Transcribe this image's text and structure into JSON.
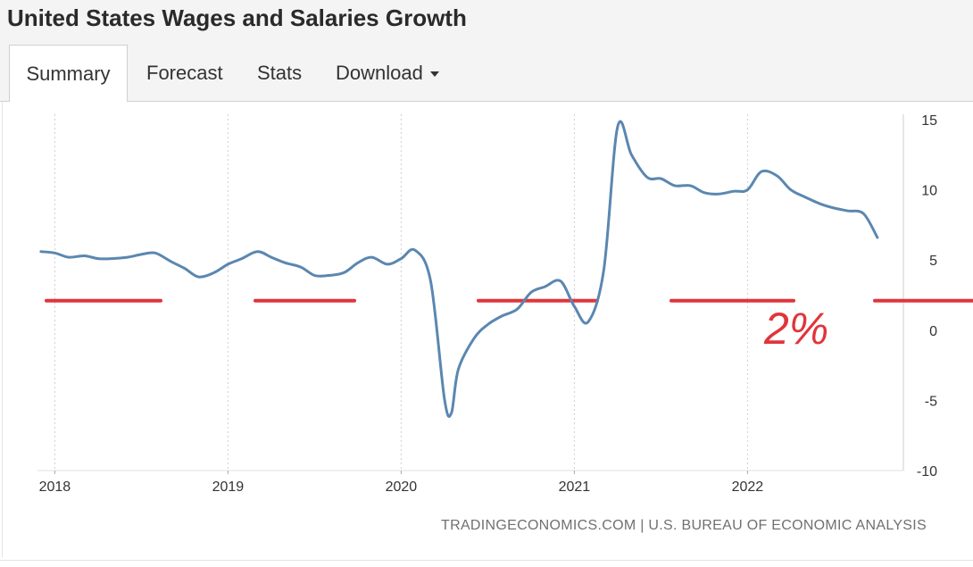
{
  "page": {
    "title": "United States Wages and Salaries Growth"
  },
  "tabs": [
    {
      "label": "Summary",
      "active": true
    },
    {
      "label": "Forecast",
      "active": false
    },
    {
      "label": "Stats",
      "active": false
    },
    {
      "label": "Download",
      "active": false,
      "has_dropdown": true
    }
  ],
  "source": "TRADINGECONOMICS.COM | U.S. BUREAU OF ECONOMIC ANALYSIS",
  "colors": {
    "line": "#5a87b0",
    "annotation": "#e0353b",
    "grid": "#d0d0d0"
  },
  "chart_data": {
    "type": "line",
    "title": "",
    "xlabel": "",
    "ylabel": "",
    "x_ticks": [
      "2018",
      "2019",
      "2020",
      "2021",
      "2022"
    ],
    "y_ticks": [
      15,
      10,
      5,
      0,
      -5,
      -10
    ],
    "ylim": [
      -10,
      15
    ],
    "xlim": [
      2017.9,
      2022.9
    ],
    "grid": "vertical dotted",
    "y_axis_position": "right",
    "series": [
      {
        "points": [
          [
            2017.92,
            5.6
          ],
          [
            2018.0,
            5.5
          ],
          [
            2018.08,
            5.2
          ],
          [
            2018.17,
            5.3
          ],
          [
            2018.25,
            5.1
          ],
          [
            2018.33,
            5.1
          ],
          [
            2018.42,
            5.2
          ],
          [
            2018.5,
            5.4
          ],
          [
            2018.58,
            5.5
          ],
          [
            2018.67,
            4.9
          ],
          [
            2018.75,
            4.4
          ],
          [
            2018.83,
            3.8
          ],
          [
            2018.92,
            4.1
          ],
          [
            2019.0,
            4.7
          ],
          [
            2019.08,
            5.1
          ],
          [
            2019.17,
            5.6
          ],
          [
            2019.25,
            5.2
          ],
          [
            2019.33,
            4.8
          ],
          [
            2019.42,
            4.5
          ],
          [
            2019.5,
            3.9
          ],
          [
            2019.58,
            3.9
          ],
          [
            2019.67,
            4.1
          ],
          [
            2019.75,
            4.8
          ],
          [
            2019.83,
            5.2
          ],
          [
            2019.92,
            4.7
          ],
          [
            2020.0,
            5.1
          ],
          [
            2020.08,
            5.7
          ],
          [
            2020.17,
            3.5
          ],
          [
            2020.25,
            -4.9
          ],
          [
            2020.29,
            -5.9
          ],
          [
            2020.33,
            -2.8
          ],
          [
            2020.42,
            -0.6
          ],
          [
            2020.5,
            0.4
          ],
          [
            2020.58,
            1.0
          ],
          [
            2020.67,
            1.5
          ],
          [
            2020.75,
            2.7
          ],
          [
            2020.83,
            3.1
          ],
          [
            2020.92,
            3.5
          ],
          [
            2021.0,
            1.7
          ],
          [
            2021.08,
            0.6
          ],
          [
            2021.17,
            4.3
          ],
          [
            2021.25,
            14.5
          ],
          [
            2021.33,
            12.5
          ],
          [
            2021.42,
            10.9
          ],
          [
            2021.5,
            10.8
          ],
          [
            2021.58,
            10.3
          ],
          [
            2021.67,
            10.3
          ],
          [
            2021.75,
            9.8
          ],
          [
            2021.83,
            9.7
          ],
          [
            2021.92,
            9.9
          ],
          [
            2022.0,
            10.0
          ],
          [
            2022.08,
            11.3
          ],
          [
            2022.17,
            11.0
          ],
          [
            2022.25,
            10.0
          ],
          [
            2022.33,
            9.5
          ],
          [
            2022.42,
            9.0
          ],
          [
            2022.5,
            8.7
          ],
          [
            2022.58,
            8.5
          ],
          [
            2022.67,
            8.3
          ],
          [
            2022.75,
            6.6
          ]
        ]
      }
    ],
    "annotations": {
      "reference_level": 2.1,
      "reference_style": "dashed red line",
      "label": "2%"
    }
  }
}
